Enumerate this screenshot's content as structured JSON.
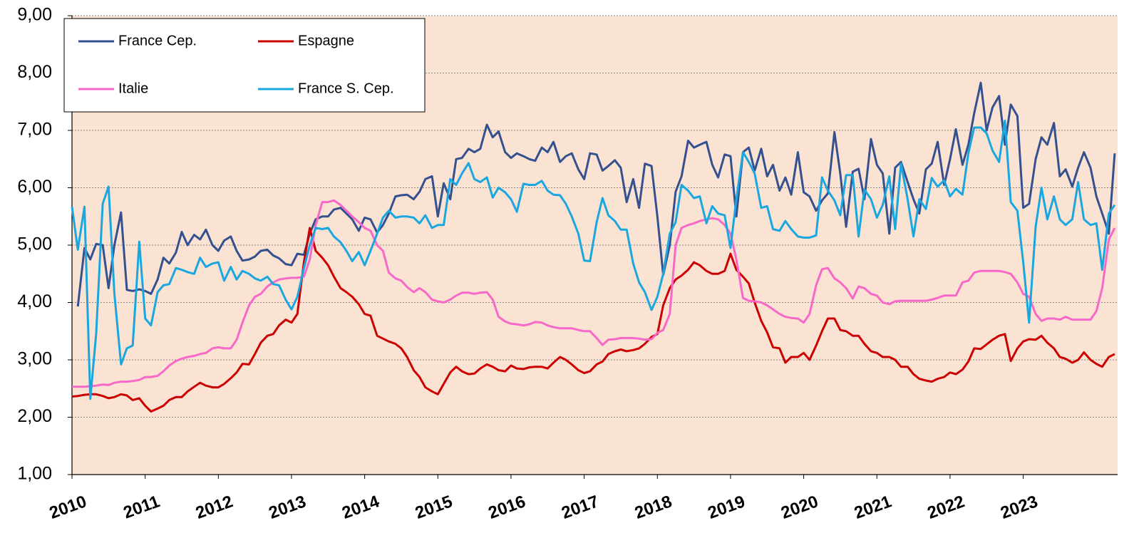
{
  "chart_data": {
    "type": "line",
    "xlim": [
      2010,
      2024.29
    ],
    "xticks": [
      2010,
      2011,
      2012,
      2013,
      2014,
      2015,
      2016,
      2017,
      2018,
      2019,
      2020,
      2021,
      2022,
      2023
    ],
    "ylim": [
      1,
      9
    ],
    "yticks": [
      {
        "value": 1,
        "label": "1,00"
      },
      {
        "value": 2,
        "label": "2,00"
      },
      {
        "value": 3,
        "label": "3,00"
      },
      {
        "value": 4,
        "label": "4,00"
      },
      {
        "value": 5,
        "label": "5,00"
      },
      {
        "value": 6,
        "label": "6,00"
      },
      {
        "value": 7,
        "label": "7,00"
      },
      {
        "value": 8,
        "label": "8,00"
      },
      {
        "value": 9,
        "label": "9,00"
      }
    ],
    "grid": true,
    "legend": "top-left",
    "x": [
      2010,
      2010.08,
      2010.17,
      2010.25,
      2010.33,
      2010.42,
      2010.5,
      2010.58,
      2010.67,
      2010.75,
      2010.83,
      2010.92,
      2011,
      2011.08,
      2011.17,
      2011.25,
      2011.33,
      2011.42,
      2011.5,
      2011.58,
      2011.67,
      2011.75,
      2011.83,
      2011.92,
      2012,
      2012.08,
      2012.17,
      2012.25,
      2012.33,
      2012.42,
      2012.5,
      2012.58,
      2012.67,
      2012.75,
      2012.83,
      2012.92,
      2013,
      2013.08,
      2013.17,
      2013.25,
      2013.33,
      2013.42,
      2013.5,
      2013.58,
      2013.67,
      2013.75,
      2013.83,
      2013.92,
      2014,
      2014.08,
      2014.17,
      2014.25,
      2014.33,
      2014.42,
      2014.5,
      2014.58,
      2014.67,
      2014.75,
      2014.83,
      2014.92,
      2015,
      2015.08,
      2015.17,
      2015.25,
      2015.33,
      2015.42,
      2015.5,
      2015.58,
      2015.67,
      2015.75,
      2015.83,
      2015.92,
      2016,
      2016.08,
      2016.17,
      2016.25,
      2016.33,
      2016.42,
      2016.5,
      2016.58,
      2016.67,
      2016.75,
      2016.83,
      2016.92,
      2017,
      2017.08,
      2017.17,
      2017.25,
      2017.33,
      2017.42,
      2017.5,
      2017.58,
      2017.67,
      2017.75,
      2017.83,
      2017.92,
      2018,
      2018.08,
      2018.17,
      2018.25,
      2018.33,
      2018.42,
      2018.5,
      2018.58,
      2018.67,
      2018.75,
      2018.83,
      2018.92,
      2019,
      2019.08,
      2019.17,
      2019.25,
      2019.33,
      2019.42,
      2019.5,
      2019.58,
      2019.67,
      2019.75,
      2019.83,
      2019.92,
      2020,
      2020.08,
      2020.17,
      2020.25,
      2020.33,
      2020.42,
      2020.5,
      2020.58,
      2020.67,
      2020.75,
      2020.83,
      2020.92,
      2021,
      2021.08,
      2021.17,
      2021.25,
      2021.33,
      2021.42,
      2021.5,
      2021.58,
      2021.67,
      2021.75,
      2021.83,
      2021.92,
      2022,
      2022.08,
      2022.17,
      2022.25,
      2022.33,
      2022.42,
      2022.5,
      2022.58,
      2022.67,
      2022.75,
      2022.83,
      2022.92,
      2023,
      2023.08,
      2023.17,
      2023.25,
      2023.33,
      2023.42,
      2023.5,
      2023.58,
      2023.67,
      2023.75,
      2023.83,
      2023.92,
      2024,
      2024.08,
      2024.17,
      2024.25
    ],
    "series": [
      {
        "name": "France Cep.",
        "color": "#34508f",
        "values": [
          null,
          3.93,
          4.95,
          4.75,
          5.02,
          5.0,
          4.25,
          5.0,
          5.57,
          4.22,
          4.2,
          4.23,
          4.2,
          4.15,
          4.4,
          4.78,
          4.68,
          4.87,
          5.23,
          5.0,
          5.18,
          5.1,
          5.27,
          5.0,
          4.9,
          5.08,
          5.15,
          4.9,
          4.73,
          4.75,
          4.8,
          4.9,
          4.92,
          4.82,
          4.77,
          4.67,
          4.65,
          4.85,
          4.83,
          5.2,
          5.45,
          5.5,
          5.5,
          5.62,
          5.65,
          5.55,
          5.45,
          5.25,
          5.48,
          5.45,
          5.22,
          5.35,
          5.55,
          5.85,
          5.87,
          5.88,
          5.8,
          5.93,
          6.15,
          6.2,
          5.5,
          6.08,
          5.8,
          6.5,
          6.52,
          6.68,
          6.62,
          6.68,
          7.1,
          6.88,
          6.98,
          6.62,
          6.52,
          6.6,
          6.55,
          6.5,
          6.47,
          6.7,
          6.62,
          6.8,
          6.45,
          6.55,
          6.6,
          6.32,
          6.15,
          6.6,
          6.58,
          6.3,
          6.38,
          6.48,
          6.35,
          5.75,
          6.15,
          5.65,
          6.42,
          6.38,
          5.5,
          4.48,
          5.0,
          5.93,
          6.2,
          6.82,
          6.7,
          6.75,
          6.8,
          6.4,
          6.18,
          6.58,
          6.55,
          5.5,
          6.62,
          6.7,
          6.3,
          6.68,
          6.2,
          6.4,
          5.95,
          6.18,
          5.88,
          6.62,
          5.92,
          5.85,
          5.6,
          5.78,
          5.9,
          6.97,
          6.25,
          5.32,
          6.28,
          6.33,
          5.8,
          6.85,
          6.4,
          6.25,
          5.2,
          6.35,
          6.45,
          6.1,
          5.8,
          5.55,
          6.32,
          6.42,
          6.8,
          6.05,
          6.5,
          7.02,
          6.4,
          6.75,
          7.3,
          7.83,
          7.0,
          7.4,
          7.6,
          6.75,
          7.45,
          7.25,
          5.65,
          5.72,
          6.5,
          6.88,
          6.75,
          7.13,
          6.2,
          6.32,
          6.02,
          6.35,
          6.62,
          6.35,
          5.85,
          5.55,
          5.2,
          6.6
        ]
      },
      {
        "name": "Espagne",
        "color": "#cc0000",
        "values": [
          2.36,
          2.37,
          2.39,
          2.4,
          2.4,
          2.37,
          2.33,
          2.35,
          2.4,
          2.38,
          2.3,
          2.33,
          2.2,
          2.1,
          2.15,
          2.2,
          2.3,
          2.35,
          2.35,
          2.45,
          2.53,
          2.6,
          2.55,
          2.52,
          2.52,
          2.58,
          2.68,
          2.78,
          2.93,
          2.92,
          3.1,
          3.3,
          3.42,
          3.45,
          3.6,
          3.7,
          3.65,
          3.8,
          4.7,
          5.3,
          4.9,
          4.78,
          4.65,
          4.45,
          4.25,
          4.18,
          4.1,
          3.97,
          3.8,
          3.77,
          3.42,
          3.37,
          3.32,
          3.28,
          3.2,
          3.05,
          2.82,
          2.7,
          2.52,
          2.45,
          2.4,
          2.58,
          2.78,
          2.88,
          2.8,
          2.75,
          2.76,
          2.85,
          2.92,
          2.88,
          2.82,
          2.8,
          2.9,
          2.85,
          2.84,
          2.87,
          2.88,
          2.88,
          2.85,
          2.95,
          3.05,
          3.0,
          2.92,
          2.82,
          2.77,
          2.8,
          2.92,
          2.97,
          3.1,
          3.15,
          3.18,
          3.15,
          3.17,
          3.2,
          3.28,
          3.4,
          3.45,
          3.95,
          4.25,
          4.4,
          4.47,
          4.57,
          4.7,
          4.65,
          4.55,
          4.5,
          4.5,
          4.55,
          4.85,
          4.57,
          4.45,
          4.33,
          4.0,
          3.68,
          3.48,
          3.22,
          3.2,
          2.95,
          3.05,
          3.05,
          3.12,
          3.0,
          3.25,
          3.5,
          3.72,
          3.72,
          3.52,
          3.5,
          3.42,
          3.42,
          3.28,
          3.15,
          3.12,
          3.05,
          3.05,
          3.0,
          2.88,
          2.88,
          2.75,
          2.67,
          2.64,
          2.62,
          2.67,
          2.7,
          2.78,
          2.75,
          2.83,
          2.97,
          3.2,
          3.19,
          3.27,
          3.35,
          3.42,
          3.45,
          2.98,
          3.2,
          3.32,
          3.36,
          3.35,
          3.42,
          3.3,
          3.2,
          3.05,
          3.02,
          2.95,
          3.0,
          3.13,
          3.0,
          2.93,
          2.88,
          3.05,
          3.1
        ]
      },
      {
        "name": "Italie",
        "color": "#f768c8",
        "values": [
          2.53,
          2.53,
          2.53,
          2.54,
          2.55,
          2.57,
          2.56,
          2.6,
          2.62,
          2.62,
          2.63,
          2.65,
          2.7,
          2.7,
          2.72,
          2.8,
          2.9,
          2.98,
          3.02,
          3.05,
          3.07,
          3.1,
          3.12,
          3.2,
          3.22,
          3.2,
          3.2,
          3.35,
          3.65,
          3.95,
          4.1,
          4.15,
          4.28,
          4.35,
          4.4,
          4.42,
          4.43,
          4.43,
          4.45,
          4.75,
          5.35,
          5.75,
          5.75,
          5.78,
          5.7,
          5.6,
          5.5,
          5.4,
          5.3,
          5.25,
          5.0,
          4.9,
          4.52,
          4.42,
          4.38,
          4.27,
          4.18,
          4.25,
          4.18,
          4.05,
          4.02,
          4.0,
          4.05,
          4.12,
          4.17,
          4.17,
          4.15,
          4.17,
          4.18,
          4.05,
          3.75,
          3.67,
          3.63,
          3.62,
          3.6,
          3.62,
          3.66,
          3.65,
          3.6,
          3.57,
          3.55,
          3.55,
          3.55,
          3.52,
          3.5,
          3.5,
          3.38,
          3.26,
          3.35,
          3.36,
          3.38,
          3.38,
          3.38,
          3.37,
          3.35,
          3.36,
          3.47,
          3.52,
          3.8,
          5.0,
          5.3,
          5.35,
          5.38,
          5.42,
          5.45,
          5.47,
          5.45,
          5.35,
          5.2,
          4.75,
          4.08,
          4.03,
          4.02,
          4.0,
          3.95,
          3.88,
          3.8,
          3.75,
          3.73,
          3.72,
          3.65,
          3.8,
          4.3,
          4.58,
          4.6,
          4.42,
          4.35,
          4.25,
          4.07,
          4.28,
          4.25,
          4.15,
          4.12,
          4.0,
          3.97,
          4.02,
          4.03,
          4.03,
          4.03,
          4.03,
          4.03,
          4.05,
          4.08,
          4.12,
          4.12,
          4.12,
          4.35,
          4.38,
          4.52,
          4.55,
          4.55,
          4.55,
          4.55,
          4.53,
          4.5,
          4.35,
          4.15,
          4.1,
          3.8,
          3.68,
          3.72,
          3.72,
          3.7,
          3.75,
          3.7,
          3.7,
          3.7,
          3.7,
          3.85,
          4.25,
          5.1,
          5.3
        ]
      },
      {
        "name": "France S. Cep.",
        "color": "#1aa7e0",
        "values": [
          5.67,
          4.92,
          5.67,
          2.32,
          3.45,
          5.72,
          6.02,
          4.15,
          2.92,
          3.2,
          3.25,
          5.06,
          3.72,
          3.6,
          4.18,
          4.3,
          4.32,
          4.6,
          4.57,
          4.53,
          4.5,
          4.78,
          4.62,
          4.68,
          4.7,
          4.38,
          4.62,
          4.4,
          4.55,
          4.5,
          4.42,
          4.38,
          4.45,
          4.32,
          4.3,
          4.05,
          3.88,
          4.1,
          4.6,
          5.0,
          5.3,
          5.28,
          5.3,
          5.15,
          5.05,
          4.9,
          4.72,
          4.88,
          4.65,
          4.9,
          5.2,
          5.48,
          5.6,
          5.48,
          5.5,
          5.5,
          5.48,
          5.38,
          5.52,
          5.3,
          5.35,
          5.35,
          6.15,
          6.05,
          6.25,
          6.43,
          6.15,
          6.1,
          6.18,
          5.83,
          6.0,
          5.92,
          5.8,
          5.58,
          6.07,
          6.05,
          6.05,
          6.12,
          5.95,
          5.88,
          5.87,
          5.72,
          5.5,
          5.2,
          4.73,
          4.72,
          5.4,
          5.82,
          5.52,
          5.42,
          5.27,
          5.27,
          4.68,
          4.35,
          4.18,
          3.87,
          4.1,
          4.5,
          5.2,
          5.4,
          6.05,
          5.95,
          5.82,
          5.85,
          5.38,
          5.68,
          5.55,
          5.52,
          4.95,
          5.8,
          6.62,
          6.45,
          6.25,
          5.65,
          5.68,
          5.28,
          5.25,
          5.42,
          5.28,
          5.15,
          5.13,
          5.13,
          5.17,
          6.18,
          5.95,
          5.78,
          5.52,
          6.22,
          6.22,
          5.15,
          5.97,
          5.8,
          5.48,
          5.7,
          6.2,
          5.28,
          6.42,
          5.8,
          5.15,
          5.8,
          5.63,
          6.17,
          6.02,
          6.13,
          5.85,
          5.98,
          5.88,
          6.6,
          7.05,
          7.05,
          6.95,
          6.65,
          6.45,
          7.17,
          5.75,
          5.6,
          4.7,
          3.65,
          5.32,
          6.0,
          5.45,
          5.85,
          5.45,
          5.35,
          5.45,
          6.1,
          5.45,
          5.35,
          5.38,
          4.57,
          5.55,
          5.7
        ]
      }
    ]
  }
}
